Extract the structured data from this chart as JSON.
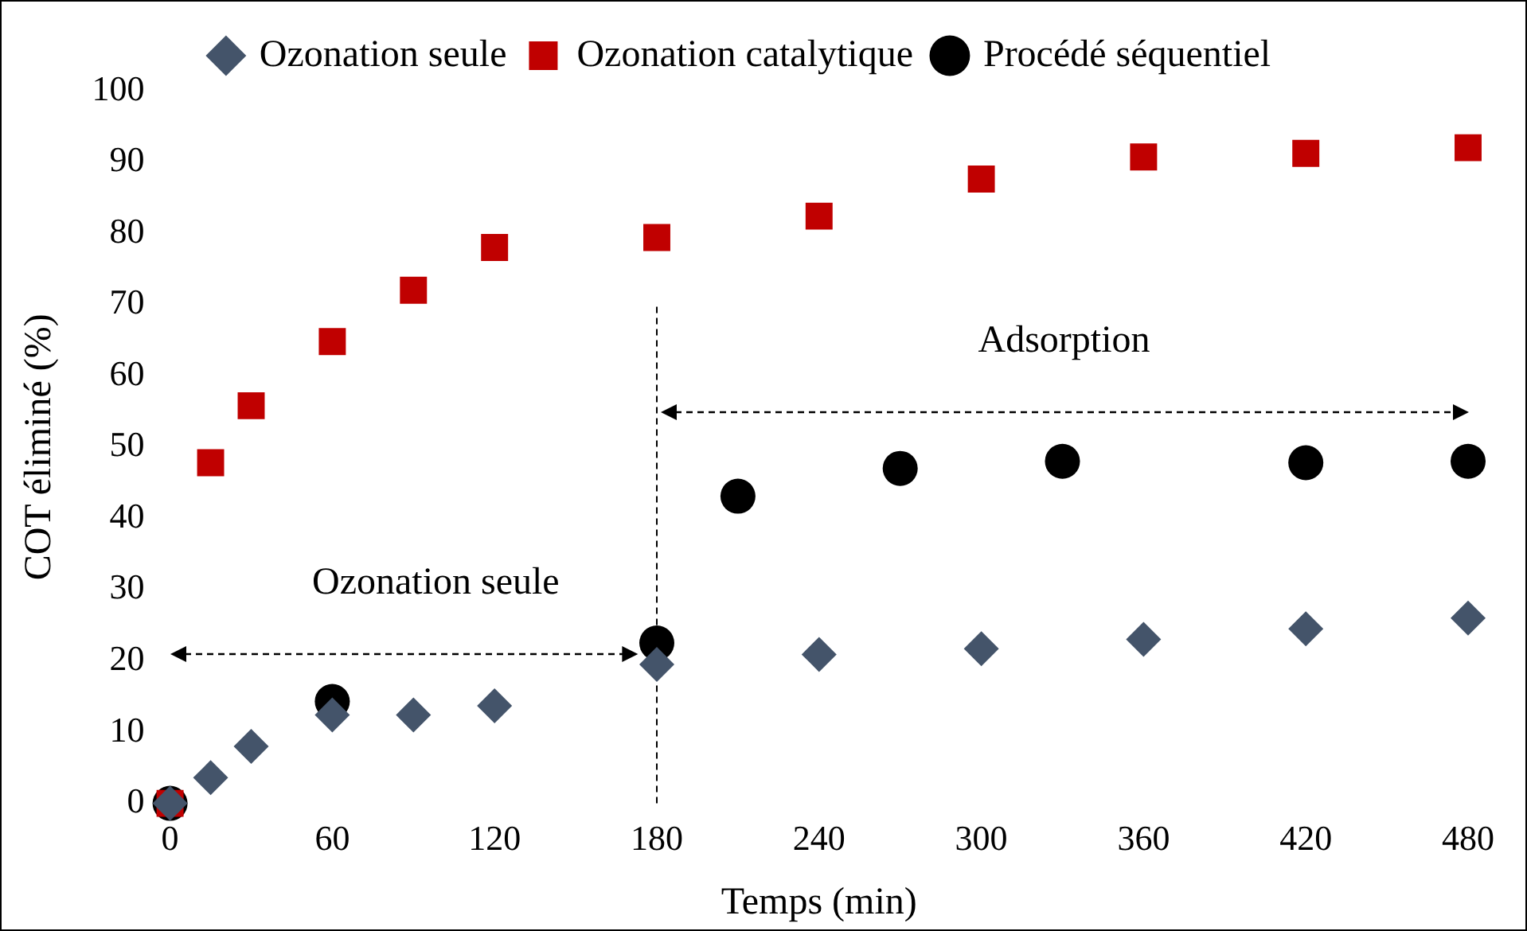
{
  "chart_data": {
    "type": "scatter",
    "xlabel": "Temps (min)",
    "ylabel": "COT éliminé (%)",
    "xlim": [
      0,
      480
    ],
    "xticks": [
      0,
      60,
      120,
      180,
      240,
      300,
      360,
      420,
      480
    ],
    "ylim": [
      0,
      100
    ],
    "yticks": [
      0,
      10,
      20,
      30,
      40,
      50,
      60,
      70,
      80,
      90,
      100
    ],
    "grid": false,
    "legend": "top",
    "series": [
      {
        "name": "Ozonation seule",
        "color": "#44546a",
        "marker": "diamond",
        "x": [
          0,
          15,
          30,
          60,
          90,
          120,
          180,
          240,
          300,
          360,
          420,
          480
        ],
        "values": [
          0,
          3.6,
          8,
          12.4,
          12.4,
          13.7,
          19.5,
          20.9,
          21.7,
          23,
          24.5,
          26
        ]
      },
      {
        "name": "Ozonation catalytique",
        "color": "#c00000",
        "marker": "square",
        "x": [
          0,
          15,
          30,
          60,
          90,
          120,
          180,
          240,
          300,
          360,
          420,
          480
        ],
        "values": [
          0,
          47.8,
          55.8,
          64.8,
          72,
          78,
          79.4,
          82.4,
          87.6,
          90.7,
          91.2,
          92
        ]
      },
      {
        "name": "Procédé séquentiel",
        "color": "#000000",
        "marker": "circle",
        "x": [
          0,
          60,
          180,
          210,
          270,
          330,
          420,
          480
        ],
        "values": [
          0,
          14.3,
          22.5,
          43.1,
          47,
          48,
          47.8,
          48
        ]
      }
    ],
    "ref_lines": [
      {
        "axis": "x",
        "value": 180,
        "line_style": "dashed",
        "color": "#000000"
      }
    ],
    "annotations": [
      "Ozonation seule",
      "Adsorption"
    ]
  }
}
